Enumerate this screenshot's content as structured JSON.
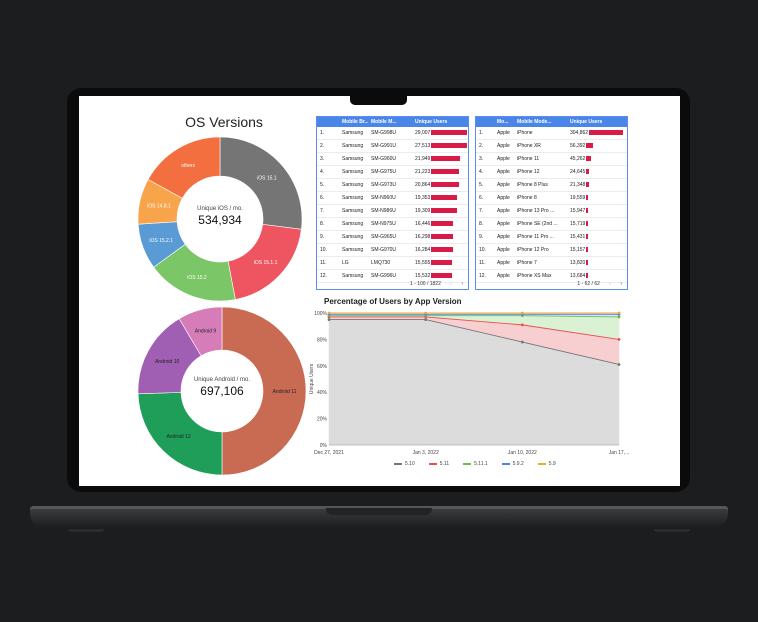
{
  "dashboard": {
    "os_title": "OS Versions",
    "ios_center_sub": "Unique iOS / mo.",
    "ios_center_value": "534,934",
    "android_center_sub": "Unique Android / mo.",
    "android_center_value": "697,106"
  },
  "ios_pie_labels": [
    "iOS 15.1",
    "iOS 15.1.1",
    "iOS 15.2",
    "iOS 15.2.1",
    "iOS 14.8.1",
    "others"
  ],
  "android_pie_labels": [
    "Android 11",
    "Android 12",
    "Android 10",
    "Android 9"
  ],
  "table1": {
    "headers": [
      "Mobile Br...",
      "Mobile M...",
      "Unique Users"
    ],
    "rows": [
      [
        "1.",
        "Samsung",
        "SM-G998U",
        "29,007"
      ],
      [
        "2.",
        "Samsung",
        "SM-G991U",
        "27,513"
      ],
      [
        "3.",
        "Samsung",
        "SM-G960U",
        "21,949"
      ],
      [
        "4.",
        "Samsung",
        "SM-G975U",
        "21,223"
      ],
      [
        "5.",
        "Samsung",
        "SM-G973U",
        "20,864"
      ],
      [
        "6.",
        "Samsung",
        "SM-N960U",
        "19,353"
      ],
      [
        "7.",
        "Samsung",
        "SM-N986U",
        "19,309"
      ],
      [
        "8.",
        "Samsung",
        "SM-N975U",
        "16,446"
      ],
      [
        "9.",
        "Samsung",
        "SM-G965U",
        "16,298"
      ],
      [
        "10.",
        "Samsung",
        "SM-G970U",
        "16,284"
      ],
      [
        "11.",
        "LG",
        "LMQ730",
        "15,555"
      ],
      [
        "12.",
        "Samsung",
        "SM-G996U",
        "15,532"
      ]
    ],
    "pager": "1 - 100 / 1822"
  },
  "table2": {
    "headers": [
      "Mo...",
      "Mobile Mode...",
      "Unique Users"
    ],
    "rows": [
      [
        "1.",
        "Apple",
        "iPhone",
        "304,862"
      ],
      [
        "2.",
        "Apple",
        "iPhone XR",
        "56,392"
      ],
      [
        "3.",
        "Apple",
        "iPhone 11",
        "45,262"
      ],
      [
        "4.",
        "Apple",
        "iPhone 12",
        "24,645"
      ],
      [
        "5.",
        "Apple",
        "iPhone 8 Plus",
        "21,348"
      ],
      [
        "6.",
        "Apple",
        "iPhone 8",
        "19,559"
      ],
      [
        "7.",
        "Apple",
        "iPhone 13 Pro ...",
        "15,947"
      ],
      [
        "8.",
        "Apple",
        "iPhone SE (2nd ...",
        "15,719"
      ],
      [
        "9.",
        "Apple",
        "iPhone 11 Pro ...",
        "15,431"
      ],
      [
        "10.",
        "Apple",
        "iPhone 12 Pro",
        "15,157"
      ],
      [
        "11.",
        "Apple",
        "iPhone 7",
        "13,820"
      ],
      [
        "12.",
        "Apple",
        "iPhone XS Max",
        "13,684"
      ]
    ],
    "pager": "1 - 62 / 62"
  },
  "chart_data": [
    {
      "type": "pie",
      "labels": [
        "iOS 15.1",
        "iOS 15.1.1",
        "iOS 15.2",
        "iOS 15.2.1",
        "iOS 14.8.1",
        "others"
      ],
      "values": [
        27,
        20,
        18,
        9,
        9,
        17
      ],
      "colors": [
        "#757575",
        "#ef5560",
        "#7bc768",
        "#5b9bd5",
        "#f7a44b",
        "#f36f3f"
      ]
    },
    {
      "type": "pie",
      "labels": [
        "Android 11",
        "Android 12",
        "Android 10",
        "Android 9"
      ],
      "values": [
        47,
        23,
        16,
        8
      ],
      "colors": [
        "#c86b52",
        "#1e9e58",
        "#a05fb3",
        "#d67db9"
      ]
    },
    {
      "type": "line",
      "title": "Percentage of Users by App Version",
      "ylabel": "Unique Users",
      "x": [
        "Dec 27, 2021",
        "Jan 3, 2022",
        "Jan 10, 2022",
        "Jan 17,..."
      ],
      "ylim": [
        0,
        100
      ],
      "yticks": [
        "0%",
        "20%",
        "40%",
        "60%",
        "80%",
        "100%"
      ],
      "series": [
        {
          "name": "5.10",
          "color": "#757575",
          "values": [
            95,
            95,
            78,
            61
          ]
        },
        {
          "name": "5.11",
          "color": "#e94e4e",
          "values": [
            97,
            97,
            91,
            80
          ]
        },
        {
          "name": "5.11.1",
          "color": "#6cc04a",
          "values": [
            98,
            98,
            98,
            97
          ]
        },
        {
          "name": "5.9.2",
          "color": "#4a86e8",
          "values": [
            99,
            99,
            99,
            99
          ]
        },
        {
          "name": "5.9",
          "color": "#f6a23a",
          "values": [
            100,
            100,
            100,
            100
          ]
        }
      ]
    }
  ]
}
